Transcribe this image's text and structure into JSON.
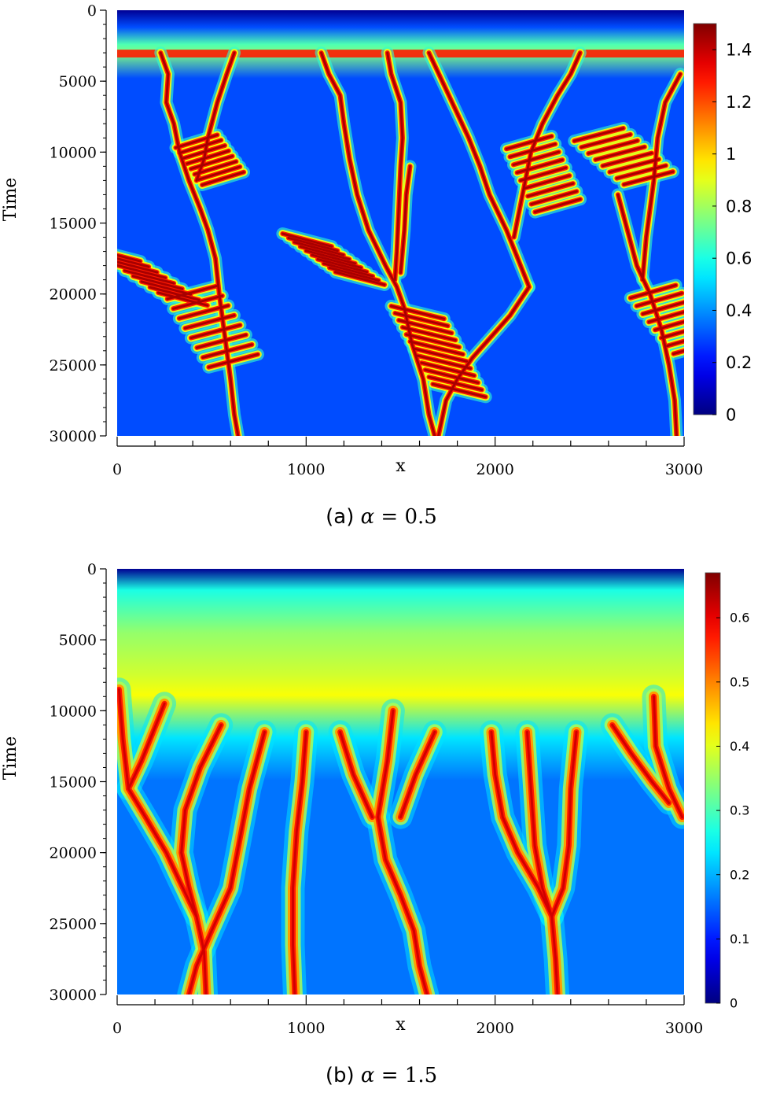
{
  "chart_data": [
    {
      "type": "heatmap",
      "panel_label": "(a)",
      "alpha_symbol": "α",
      "alpha_value": "0.5",
      "xlabel": "x",
      "ylabel": "Time",
      "xlim": [
        0,
        3000
      ],
      "ylim": [
        0,
        30000
      ],
      "y_inverted": true,
      "x_ticks": [
        "0",
        "1000",
        "2000",
        "3000"
      ],
      "y_ticks": [
        "0",
        "5000",
        "10000",
        "15000",
        "20000",
        "25000",
        "30000"
      ],
      "colorbar": {
        "min": 0,
        "max": 1.5,
        "ticks": [
          "0",
          "0.2",
          "0.4",
          "0.6",
          "0.8",
          "1",
          "1.2",
          "1.4"
        ],
        "tick_values": [
          0,
          0.2,
          0.4,
          0.6,
          0.8,
          1.0,
          1.2,
          1.4
        ],
        "colormap": "jet"
      },
      "background_value": 0.3,
      "initial_onset_time": 3000,
      "filaments": [
        [
          [
            230,
            3000
          ],
          [
            270,
            4500
          ],
          [
            260,
            6500
          ],
          [
            300,
            8000
          ],
          [
            330,
            10000
          ],
          [
            380,
            12000
          ],
          [
            440,
            14000
          ],
          [
            480,
            15500
          ],
          [
            520,
            17500
          ],
          [
            540,
            20000
          ],
          [
            570,
            23000
          ],
          [
            600,
            26000
          ],
          [
            620,
            28500
          ],
          [
            640,
            30000
          ]
        ],
        [
          [
            620,
            3000
          ],
          [
            580,
            4500
          ],
          [
            530,
            6500
          ],
          [
            480,
            9000
          ],
          [
            460,
            10500
          ],
          [
            420,
            12000
          ]
        ],
        [
          [
            1080,
            3000
          ],
          [
            1120,
            4500
          ],
          [
            1180,
            6000
          ],
          [
            1200,
            8000
          ],
          [
            1230,
            10500
          ],
          [
            1270,
            13000
          ],
          [
            1330,
            15500
          ],
          [
            1420,
            18000
          ],
          [
            1480,
            19500
          ],
          [
            1520,
            21000
          ],
          [
            1560,
            23500
          ],
          [
            1620,
            26000
          ],
          [
            1650,
            28500
          ],
          [
            1680,
            30000
          ]
        ],
        [
          [
            1430,
            3000
          ],
          [
            1450,
            4500
          ],
          [
            1500,
            6500
          ],
          [
            1510,
            9000
          ],
          [
            1500,
            11000
          ],
          [
            1490,
            14000
          ],
          [
            1480,
            17000
          ],
          [
            1470,
            19000
          ]
        ],
        [
          [
            1550,
            11000
          ],
          [
            1530,
            13000
          ],
          [
            1520,
            15500
          ],
          [
            1500,
            18500
          ]
        ],
        [
          [
            1650,
            3000
          ],
          [
            1720,
            5000
          ],
          [
            1790,
            7000
          ],
          [
            1860,
            9000
          ],
          [
            1920,
            11000
          ],
          [
            1970,
            13000
          ],
          [
            2060,
            15500
          ],
          [
            2120,
            17500
          ],
          [
            2180,
            19500
          ]
        ],
        [
          [
            2180,
            19500
          ],
          [
            2080,
            21500
          ],
          [
            1980,
            23000
          ],
          [
            1880,
            24500
          ],
          [
            1800,
            26000
          ],
          [
            1740,
            27500
          ],
          [
            1700,
            30000
          ]
        ],
        [
          [
            2450,
            3000
          ],
          [
            2400,
            4500
          ],
          [
            2330,
            6000
          ],
          [
            2250,
            8000
          ],
          [
            2190,
            10000
          ],
          [
            2160,
            12000
          ],
          [
            2130,
            14000
          ],
          [
            2100,
            16000
          ]
        ],
        [
          [
            2650,
            13000
          ],
          [
            2700,
            15500
          ],
          [
            2750,
            18000
          ],
          [
            2820,
            20000
          ],
          [
            2880,
            22500
          ],
          [
            2920,
            25000
          ],
          [
            2950,
            27500
          ],
          [
            2960,
            30000
          ]
        ],
        [
          [
            2980,
            4500
          ],
          [
            2900,
            6500
          ],
          [
            2860,
            9000
          ],
          [
            2840,
            12000
          ],
          [
            2800,
            16000
          ],
          [
            2780,
            19000
          ]
        ]
      ],
      "rib_groups": [
        {
          "base": [
            [
              300,
              9500
            ],
            [
              460,
              12500
            ]
          ],
          "direction": 1,
          "count": 8,
          "length": 220
        },
        {
          "base": [
            [
              100,
              17500
            ],
            [
              500,
              21000
            ]
          ],
          "direction": -1,
          "count": 9,
          "length": 260
        },
        {
          "base": [
            [
              250,
              20000
            ],
            [
              500,
              25500
            ]
          ],
          "direction": 1,
          "count": 8,
          "length": 260
        },
        {
          "base": [
            [
              1120,
              16500
            ],
            [
              1430,
              19500
            ]
          ],
          "direction": -1,
          "count": 10,
          "length": 260
        },
        {
          "base": [
            [
              1720,
              21500
            ],
            [
              1960,
              27500
            ]
          ],
          "direction": -1,
          "count": 12,
          "length": 280
        },
        {
          "base": [
            [
              2050,
              9500
            ],
            [
              2220,
              14500
            ]
          ],
          "direction": 1,
          "count": 9,
          "length": 240
        },
        {
          "base": [
            [
              2400,
              9000
            ],
            [
              2700,
              12500
            ]
          ],
          "direction": 1,
          "count": 8,
          "length": 260
        },
        {
          "base": [
            [
              2700,
              20000
            ],
            [
              2960,
              24500
            ]
          ],
          "direction": 1,
          "count": 8,
          "length": 240
        }
      ]
    },
    {
      "type": "heatmap",
      "panel_label": "(b)",
      "alpha_symbol": "α",
      "alpha_value": "1.5",
      "xlabel": "x",
      "ylabel": "Time",
      "xlim": [
        0,
        3000
      ],
      "ylim": [
        0,
        30000
      ],
      "y_inverted": true,
      "x_ticks": [
        "0",
        "1000",
        "2000",
        "3000"
      ],
      "y_ticks": [
        "0",
        "5000",
        "10000",
        "15000",
        "20000",
        "25000",
        "30000"
      ],
      "colorbar": {
        "min": 0,
        "max": 0.67,
        "ticks": [
          "0",
          "0.1",
          "0.2",
          "0.3",
          "0.4",
          "0.5",
          "0.6"
        ],
        "tick_values": [
          0,
          0.1,
          0.2,
          0.3,
          0.4,
          0.5,
          0.6
        ],
        "colormap": "jet"
      },
      "background_value": 0.16,
      "initial_onset_time": 9500,
      "filaments": [
        [
          [
            10,
            8500
          ],
          [
            30,
            12000
          ],
          [
            60,
            15500
          ],
          [
            150,
            17500
          ],
          [
            260,
            20000
          ],
          [
            330,
            22000
          ],
          [
            420,
            24500
          ],
          [
            460,
            27000
          ],
          [
            470,
            30000
          ]
        ],
        [
          [
            250,
            9500
          ],
          [
            190,
            11500
          ],
          [
            130,
            13500
          ],
          [
            60,
            15500
          ]
        ],
        [
          [
            550,
            11000
          ],
          [
            440,
            14000
          ],
          [
            360,
            17000
          ],
          [
            340,
            20000
          ],
          [
            380,
            22500
          ],
          [
            420,
            24500
          ]
        ],
        [
          [
            780,
            11500
          ],
          [
            700,
            15500
          ],
          [
            650,
            19000
          ],
          [
            600,
            22500
          ],
          [
            500,
            25500
          ],
          [
            420,
            28000
          ],
          [
            380,
            30000
          ]
        ],
        [
          [
            1000,
            11500
          ],
          [
            980,
            15000
          ],
          [
            950,
            18500
          ],
          [
            930,
            22500
          ],
          [
            930,
            26500
          ],
          [
            940,
            30000
          ]
        ],
        [
          [
            1180,
            11500
          ],
          [
            1250,
            14500
          ],
          [
            1350,
            17500
          ]
        ],
        [
          [
            1460,
            10000
          ],
          [
            1430,
            13500
          ],
          [
            1380,
            17500
          ]
        ],
        [
          [
            1680,
            11500
          ],
          [
            1580,
            14500
          ],
          [
            1500,
            17500
          ]
        ],
        [
          [
            1380,
            17500
          ],
          [
            1420,
            20500
          ],
          [
            1500,
            23000
          ],
          [
            1570,
            25500
          ],
          [
            1600,
            28000
          ],
          [
            1640,
            30000
          ]
        ],
        [
          [
            1980,
            11500
          ],
          [
            2000,
            14500
          ],
          [
            2040,
            17500
          ],
          [
            2120,
            20000
          ],
          [
            2230,
            22500
          ],
          [
            2300,
            24500
          ]
        ],
        [
          [
            2170,
            11500
          ],
          [
            2190,
            15500
          ],
          [
            2210,
            19500
          ],
          [
            2250,
            22500
          ],
          [
            2300,
            24500
          ]
        ],
        [
          [
            2430,
            11500
          ],
          [
            2400,
            15500
          ],
          [
            2390,
            19500
          ],
          [
            2360,
            22500
          ],
          [
            2300,
            24500
          ]
        ],
        [
          [
            2300,
            24500
          ],
          [
            2320,
            27500
          ],
          [
            2330,
            30000
          ]
        ],
        [
          [
            2840,
            9000
          ],
          [
            2850,
            12500
          ],
          [
            2920,
            15500
          ],
          [
            2990,
            17500
          ]
        ],
        [
          [
            2620,
            11000
          ],
          [
            2720,
            13000
          ],
          [
            2830,
            15000
          ],
          [
            2920,
            16500
          ]
        ]
      ],
      "rib_groups": []
    }
  ]
}
